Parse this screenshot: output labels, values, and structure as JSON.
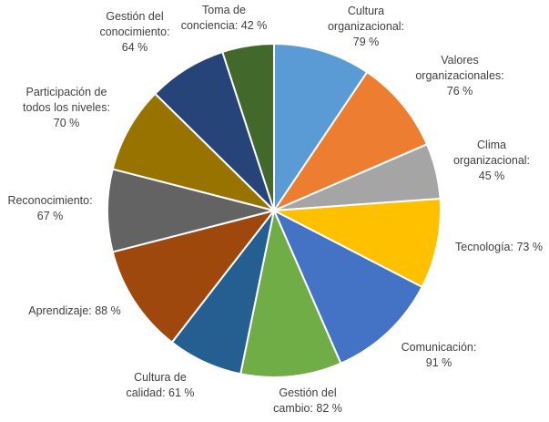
{
  "chart_data": {
    "type": "pie",
    "categories": [
      "Cultura organizacional",
      "Valores organizacionales",
      "Clima organizacional",
      "Tecnología",
      "Comunicación",
      "Gestión del cambio",
      "Cultura de calidad",
      "Aprendizaje",
      "Reconocimiento",
      "Participación de todos los niveles",
      "Gestión del conocimiento",
      "Toma de conciencia"
    ],
    "values": [
      79,
      76,
      45,
      73,
      91,
      82,
      61,
      88,
      67,
      70,
      64,
      42
    ],
    "unit": "%",
    "colors": [
      "#5b9bd5",
      "#ed7d31",
      "#a5a5a5",
      "#ffc000",
      "#4472c4",
      "#70ad47",
      "#255e91",
      "#9e480e",
      "#636363",
      "#997300",
      "#264478",
      "#43682b"
    ],
    "data_labels": [
      [
        "Cultura",
        "organizacional:",
        "79 %"
      ],
      [
        "Valores",
        "organizacionales:",
        "76 %"
      ],
      [
        "Clima",
        "organizacional:",
        "45 %"
      ],
      [
        "Tecnología:  73 %"
      ],
      [
        "Comunicación:",
        "91 %"
      ],
      [
        "Gestión del",
        "cambio:  82 %"
      ],
      [
        "Cultura de",
        "calidad:  61 %"
      ],
      [
        "Aprendizaje:  88 %"
      ],
      [
        "Reconocimiento:",
        "67 %"
      ],
      [
        "Participación de",
        "todos los niveles:",
        "70 %"
      ],
      [
        "Gestión del",
        "conocimiento:",
        "64 %"
      ],
      [
        "Toma de",
        "conciencia:  42 %"
      ]
    ],
    "title": "",
    "legend": "none"
  }
}
